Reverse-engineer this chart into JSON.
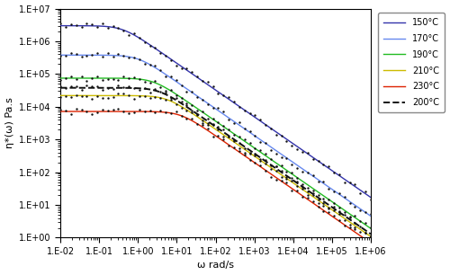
{
  "title": "",
  "xlabel": "ω rad/s",
  "ylabel": "η*(ω) Pa.s",
  "xlim_log": [
    -2,
    6
  ],
  "ylim_log": [
    0,
    7
  ],
  "series": [
    {
      "label": "150°C",
      "color": "#3333AA",
      "eta0": 3000000,
      "tau": 2.5,
      "n": 0.18,
      "x_start": -2,
      "x_end": 6,
      "dot_x_start": -2,
      "dot_x_end": 6
    },
    {
      "label": "170°C",
      "color": "#6688EE",
      "eta0": 380000,
      "tau": 1.0,
      "n": 0.18,
      "x_start": -2,
      "x_end": 6,
      "dot_x_start": -2,
      "dot_x_end": 6
    },
    {
      "label": "190°C",
      "color": "#22BB22",
      "eta0": 75000,
      "tau": 0.4,
      "n": 0.18,
      "x_start": -2,
      "x_end": 6,
      "dot_x_start": -2,
      "dot_x_end": 6
    },
    {
      "label": "210°C",
      "color": "#CCBB00",
      "eta0": 22000,
      "tau": 0.18,
      "n": 0.18,
      "x_start": -2,
      "x_end": 6,
      "dot_x_start": -2,
      "dot_x_end": 6
    },
    {
      "label": "230°C",
      "color": "#DD2200",
      "eta0": 7200,
      "tau": 0.08,
      "n": 0.18,
      "x_start": -2,
      "x_end": 6,
      "dot_x_start": -2,
      "dot_x_end": 6
    }
  ],
  "dashed_series": {
    "label": "200°C",
    "color": "#111111",
    "eta0": 38000,
    "tau": 0.28,
    "n": 0.18,
    "x_start": -2,
    "x_end": 6
  },
  "dot_color": "#111111",
  "dot_size": 3,
  "n_dots": 60,
  "background_color": "#ffffff",
  "legend_fontsize": 7,
  "tick_fontsize": 7,
  "label_fontsize": 8
}
